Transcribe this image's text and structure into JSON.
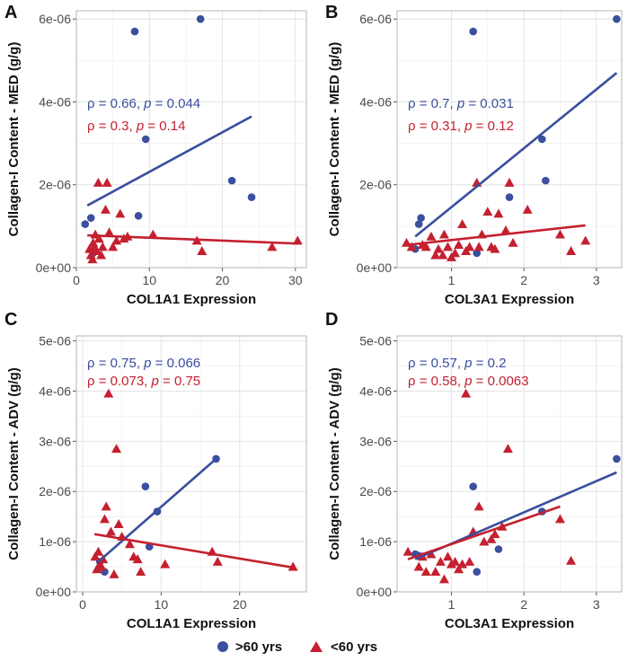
{
  "colors": {
    "over60": "#3a4f9e",
    "under60": "#c4202f",
    "grid": "#e4e4e4",
    "panel_border": "#b5b5b5"
  },
  "legend": {
    "over60_label": ">60 yrs",
    "under60_label": "<60 yrs"
  },
  "chart_data": [
    {
      "panel": "A",
      "type": "scatter",
      "xlabel": "COL1A1 Expression",
      "ylabel": "Collagen-I Content - MED (g/g)",
      "xlim": [
        0,
        31.5
      ],
      "ylim": [
        0,
        6.2e-06
      ],
      "xticks": [
        0,
        10,
        20,
        30
      ],
      "xtick_labels": [
        "0",
        "10",
        "20",
        "30"
      ],
      "yticks": [
        0,
        2e-06,
        4e-06,
        6e-06
      ],
      "ytick_labels": [
        "0e+00",
        "2e-06",
        "4e-06",
        "6e-06"
      ],
      "stats": [
        {
          "group": "over60",
          "rho": "0.66",
          "p": "0.044"
        },
        {
          "group": "under60",
          "rho": "0.3",
          "p": "0.14"
        }
      ],
      "series": [
        {
          "name": ">60 yrs",
          "group": "over60",
          "marker": "circle",
          "points": [
            [
              1.2,
              1.05e-06
            ],
            [
              2.0,
              1.2e-06
            ],
            [
              2.3,
              3.5e-07
            ],
            [
              8.0,
              5.7e-06
            ],
            [
              8.5,
              1.25e-06
            ],
            [
              9.5,
              3.1e-06
            ],
            [
              17.0,
              6e-06
            ],
            [
              21.3,
              2.1e-06
            ],
            [
              24.0,
              1.7e-06
            ]
          ],
          "fit": [
            [
              1.5,
              1.5e-06
            ],
            [
              24.0,
              3.65e-06
            ]
          ]
        },
        {
          "name": "<60 yrs",
          "group": "under60",
          "marker": "triangle",
          "points": [
            [
              1.8,
              4.5e-07
            ],
            [
              2.0,
              3e-07
            ],
            [
              2.2,
              2e-07
            ],
            [
              2.3,
              6e-07
            ],
            [
              2.5,
              5e-07
            ],
            [
              2.6,
              8e-07
            ],
            [
              2.8,
              4e-07
            ],
            [
              3.0,
              2.05e-06
            ],
            [
              3.1,
              7e-07
            ],
            [
              3.4,
              3e-07
            ],
            [
              3.6,
              5e-07
            ],
            [
              4.0,
              1.4e-06
            ],
            [
              4.2,
              2.05e-06
            ],
            [
              4.5,
              8.5e-07
            ],
            [
              5.0,
              5e-07
            ],
            [
              5.5,
              6.5e-07
            ],
            [
              6.0,
              1.3e-06
            ],
            [
              6.5,
              7e-07
            ],
            [
              7.0,
              7.5e-07
            ],
            [
              10.5,
              8e-07
            ],
            [
              16.5,
              6.5e-07
            ],
            [
              17.2,
              4e-07
            ],
            [
              26.8,
              5e-07
            ],
            [
              30.3,
              6.5e-07
            ]
          ],
          "fit": [
            [
              1.5,
              7.8e-07
            ],
            [
              30.5,
              5.8e-07
            ]
          ]
        }
      ]
    },
    {
      "panel": "B",
      "type": "scatter",
      "xlabel": "COL3A1 Expression",
      "ylabel": "Collagen-I Content - MED (g/g)",
      "xlim": [
        0.25,
        3.35
      ],
      "ylim": [
        0,
        6.2e-06
      ],
      "xticks": [
        1,
        2,
        3
      ],
      "xtick_labels": [
        "1",
        "2",
        "3"
      ],
      "yticks": [
        0,
        2e-06,
        4e-06,
        6e-06
      ],
      "ytick_labels": [
        "0e+00",
        "2e-06",
        "4e-06",
        "6e-06"
      ],
      "stats": [
        {
          "group": "over60",
          "rho": "0.7",
          "p": "0.031"
        },
        {
          "group": "under60",
          "rho": "0.31",
          "p": "0.12"
        }
      ],
      "series": [
        {
          "name": ">60 yrs",
          "group": "over60",
          "marker": "circle",
          "points": [
            [
              0.5,
              4.5e-07
            ],
            [
              0.55,
              1.05e-06
            ],
            [
              0.58,
              1.2e-06
            ],
            [
              1.3,
              5.7e-06
            ],
            [
              1.35,
              3.5e-07
            ],
            [
              1.8,
              1.7e-06
            ],
            [
              2.25,
              3.1e-06
            ],
            [
              2.3,
              2.1e-06
            ],
            [
              3.28,
              6e-06
            ]
          ],
          "fit": [
            [
              0.5,
              7.5e-07
            ],
            [
              3.28,
              4.7e-06
            ]
          ]
        },
        {
          "name": "<60 yrs",
          "group": "under60",
          "marker": "triangle",
          "points": [
            [
              0.38,
              6e-07
            ],
            [
              0.45,
              5e-07
            ],
            [
              0.6,
              5.5e-07
            ],
            [
              0.65,
              5e-07
            ],
            [
              0.72,
              7.5e-07
            ],
            [
              0.78,
              3e-07
            ],
            [
              0.82,
              4.5e-07
            ],
            [
              0.88,
              3e-07
            ],
            [
              0.9,
              8e-07
            ],
            [
              0.95,
              5e-07
            ],
            [
              1.0,
              2.5e-07
            ],
            [
              1.05,
              3.5e-07
            ],
            [
              1.1,
              5.5e-07
            ],
            [
              1.15,
              1.05e-06
            ],
            [
              1.2,
              4e-07
            ],
            [
              1.25,
              5e-07
            ],
            [
              1.35,
              2.05e-06
            ],
            [
              1.38,
              5e-07
            ],
            [
              1.42,
              8e-07
            ],
            [
              1.5,
              1.35e-06
            ],
            [
              1.55,
              5e-07
            ],
            [
              1.6,
              4.5e-07
            ],
            [
              1.65,
              1.3e-06
            ],
            [
              1.75,
              9e-07
            ],
            [
              1.8,
              2.05e-06
            ],
            [
              1.85,
              6e-07
            ],
            [
              2.05,
              1.4e-06
            ],
            [
              2.5,
              8e-07
            ],
            [
              2.65,
              4e-07
            ],
            [
              2.85,
              6.5e-07
            ]
          ],
          "fit": [
            [
              0.4,
              5.5e-07
            ],
            [
              2.85,
              1.02e-06
            ]
          ]
        }
      ]
    },
    {
      "panel": "C",
      "type": "scatter",
      "xlabel": "COL1A1 Expression",
      "ylabel": "Collagen-I Content - ADV (g/g)",
      "xlim": [
        -0.8,
        28.5
      ],
      "ylim": [
        0,
        5.1e-06
      ],
      "xticks": [
        0,
        10,
        20
      ],
      "xtick_labels": [
        "0",
        "10",
        "20"
      ],
      "yticks": [
        0,
        1e-06,
        2e-06,
        3e-06,
        4e-06,
        5e-06
      ],
      "ytick_labels": [
        "0e+00",
        "1e-06",
        "2e-06",
        "3e-06",
        "4e-06",
        "5e-06"
      ],
      "stats": [
        {
          "group": "over60",
          "rho": "0.75",
          "p": "0.066"
        },
        {
          "group": "under60",
          "rho": "0.073",
          "p": "0.75"
        }
      ],
      "series": [
        {
          "name": ">60 yrs",
          "group": "over60",
          "marker": "circle",
          "points": [
            [
              2.2,
              6e-07
            ],
            [
              2.8,
              4e-07
            ],
            [
              8.0,
              2.1e-06
            ],
            [
              8.5,
              9e-07
            ],
            [
              9.5,
              1.6e-06
            ],
            [
              17.0,
              2.65e-06
            ]
          ],
          "fit": [
            [
              2.0,
              6e-07
            ],
            [
              17.0,
              2.65e-06
            ]
          ]
        },
        {
          "name": "<60 yrs",
          "group": "under60",
          "marker": "triangle",
          "points": [
            [
              1.6,
              7e-07
            ],
            [
              1.8,
              4.5e-07
            ],
            [
              2.0,
              8e-07
            ],
            [
              2.2,
              5.5e-07
            ],
            [
              2.4,
              5e-07
            ],
            [
              2.6,
              6.5e-07
            ],
            [
              2.8,
              1.45e-06
            ],
            [
              3.0,
              1.7e-06
            ],
            [
              3.3,
              3.95e-06
            ],
            [
              3.6,
              1.2e-06
            ],
            [
              4.0,
              3.5e-07
            ],
            [
              4.3,
              2.85e-06
            ],
            [
              4.6,
              1.35e-06
            ],
            [
              5.0,
              1.1e-06
            ],
            [
              6.0,
              9.5e-07
            ],
            [
              6.5,
              7e-07
            ],
            [
              7.0,
              6.5e-07
            ],
            [
              7.4,
              4e-07
            ],
            [
              10.5,
              5.5e-07
            ],
            [
              16.5,
              8e-07
            ],
            [
              17.2,
              6e-07
            ],
            [
              26.8,
              5e-07
            ]
          ],
          "fit": [
            [
              1.5,
              1.15e-06
            ],
            [
              27.0,
              4.8e-07
            ]
          ]
        }
      ]
    },
    {
      "panel": "D",
      "type": "scatter",
      "xlabel": "COL3A1 Expression",
      "ylabel": "Collagen-I Content - ADV (g/g)",
      "xlim": [
        0.25,
        3.35
      ],
      "ylim": [
        0,
        5.1e-06
      ],
      "xticks": [
        1,
        2,
        3
      ],
      "xtick_labels": [
        "1",
        "2",
        "3"
      ],
      "yticks": [
        0,
        1e-06,
        2e-06,
        3e-06,
        4e-06,
        5e-06
      ],
      "ytick_labels": [
        "0e+00",
        "1e-06",
        "2e-06",
        "3e-06",
        "4e-06",
        "5e-06"
      ],
      "stats": [
        {
          "group": "over60",
          "rho": "0.57",
          "p": "0.2"
        },
        {
          "group": "under60",
          "rho": "0.58",
          "p": "0.0063"
        }
      ],
      "series": [
        {
          "name": ">60 yrs",
          "group": "over60",
          "marker": "circle",
          "points": [
            [
              0.5,
              7.5e-07
            ],
            [
              0.55,
              7.2e-07
            ],
            [
              1.3,
              2.1e-06
            ],
            [
              1.35,
              4e-07
            ],
            [
              1.65,
              8.5e-07
            ],
            [
              2.25,
              1.6e-06
            ],
            [
              3.28,
              2.65e-06
            ]
          ],
          "fit": [
            [
              0.5,
              6.5e-07
            ],
            [
              3.28,
              2.38e-06
            ]
          ]
        },
        {
          "name": "<60 yrs",
          "group": "under60",
          "marker": "triangle",
          "points": [
            [
              0.4,
              8e-07
            ],
            [
              0.55,
              5e-07
            ],
            [
              0.6,
              7e-07
            ],
            [
              0.65,
              4e-07
            ],
            [
              0.72,
              7.5e-07
            ],
            [
              0.78,
              4e-07
            ],
            [
              0.85,
              6e-07
            ],
            [
              0.9,
              2.5e-07
            ],
            [
              0.95,
              7e-07
            ],
            [
              1.0,
              5.5e-07
            ],
            [
              1.05,
              6e-07
            ],
            [
              1.1,
              4.5e-07
            ],
            [
              1.15,
              5.5e-07
            ],
            [
              1.2,
              3.95e-06
            ],
            [
              1.25,
              6e-07
            ],
            [
              1.3,
              1.2e-06
            ],
            [
              1.38,
              1.7e-06
            ],
            [
              1.45,
              1e-06
            ],
            [
              1.55,
              1.05e-06
            ],
            [
              1.6,
              1.15e-06
            ],
            [
              1.7,
              1.3e-06
            ],
            [
              1.78,
              2.85e-06
            ],
            [
              2.5,
              1.45e-06
            ],
            [
              2.65,
              6.2e-07
            ]
          ],
          "fit": [
            [
              0.4,
              6.5e-07
            ],
            [
              2.5,
              1.7e-06
            ]
          ]
        }
      ]
    }
  ]
}
